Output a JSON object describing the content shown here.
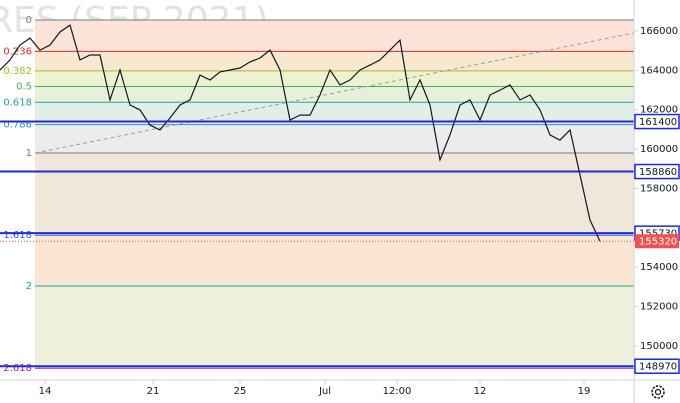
{
  "chart_data": {
    "type": "line",
    "watermark": "RES (SEP 2021)",
    "xlim": [
      0,
      63.4
    ],
    "ylim": [
      148270,
      167575
    ],
    "xticks": [
      {
        "value": 4.5,
        "label": "14"
      },
      {
        "value": 15.3,
        "label": "21"
      },
      {
        "value": 24,
        "label": "25"
      },
      {
        "value": 32.5,
        "label": "Jul"
      },
      {
        "value": 39.7,
        "label": "12:00"
      },
      {
        "value": 48,
        "label": "12"
      },
      {
        "value": 58.4,
        "label": "19"
      }
    ],
    "yticks": [
      166000,
      164000,
      162000,
      160000,
      158000,
      154000,
      152000,
      150000
    ],
    "series": [
      {
        "color": "#131722",
        "values": [
          164020,
          164530,
          165290,
          165640,
          165030,
          165290,
          165950,
          166300,
          164530,
          164780,
          164780,
          162500,
          164020,
          162240,
          161990,
          161220,
          160970,
          161580,
          162240,
          162500,
          163760,
          163510,
          163920,
          164020,
          164120,
          164430,
          164630,
          165030,
          164020,
          161480,
          161730,
          161730,
          162750,
          164020,
          163260,
          163510,
          164020,
          164270,
          164530,
          165030,
          165540,
          162500,
          163510,
          162240,
          159450,
          160720,
          162240,
          162500,
          161480,
          162750,
          163000,
          163260,
          162500,
          162750,
          161990,
          160720,
          160460,
          160970,
          158690,
          156400,
          155320
        ]
      }
    ],
    "fib_levels": [
      {
        "ratio": 0,
        "price": 166560,
        "color": "#787b86",
        "fill": "#fbe3d8"
      },
      {
        "ratio": 0.236,
        "price": 164965,
        "color": "#d32f2f",
        "fill": "#f9e8cf"
      },
      {
        "ratio": 0.382,
        "price": 163975,
        "color": "#9fbf2f",
        "fill": "#eef1d2"
      },
      {
        "ratio": 0.5,
        "price": 163180,
        "color": "#4caf50",
        "fill": "#e6f1db"
      },
      {
        "ratio": 0.618,
        "price": 162380,
        "color": "#26a69a",
        "fill": "#e2efe8"
      },
      {
        "ratio": 0.786,
        "price": 161245,
        "color": "#3c8fc0",
        "fill": "#ececec"
      },
      {
        "ratio": 1,
        "price": 159800,
        "color": "#787b86",
        "fill": "#f1e6da"
      },
      {
        "ratio": 1.618,
        "price": 155625,
        "color": "#2962ff",
        "fill": "#fbe6d3"
      },
      {
        "ratio": 2,
        "price": 153045,
        "color": "#26a69a",
        "fill": "#eef0dc"
      },
      {
        "ratio": 2.618,
        "price": 148870,
        "color": "#9c27b0",
        "fill": "#eef0dc"
      }
    ],
    "trendline": {
      "start": 159800,
      "end": 165900,
      "color": "#9e9e9e"
    },
    "levels": [
      {
        "value": 161400,
        "color": "#1e2ad6"
      },
      {
        "value": 158860,
        "color": "#1e2ad6"
      },
      {
        "value": 155730,
        "color": "#1e2ad6"
      },
      {
        "value": 148970,
        "color": "#1e2ad6"
      }
    ],
    "last_price": {
      "value": 155320,
      "color": "#ef5350"
    }
  }
}
